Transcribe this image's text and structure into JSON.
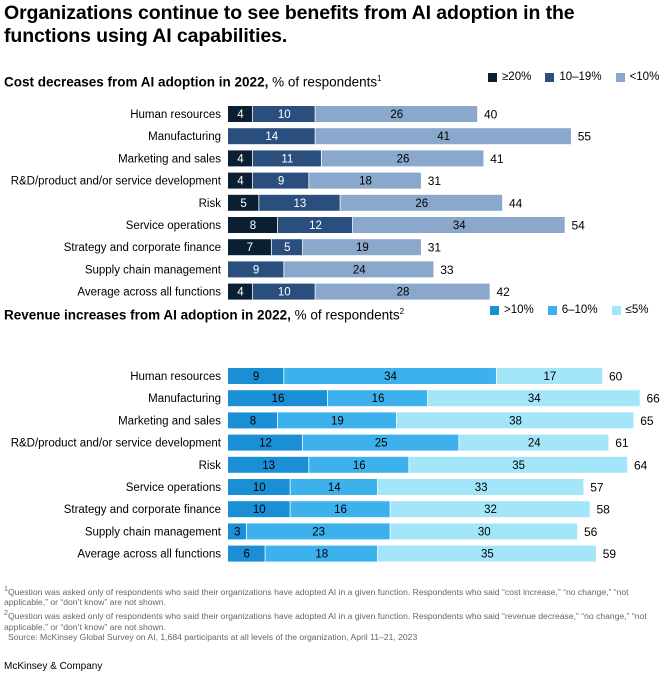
{
  "title": "Organizations continue to see benefits from AI adoption in the functions using AI capabilities.",
  "chart_data": [
    {
      "type": "bar",
      "stacked": true,
      "orientation": "horizontal",
      "title_bold": "Cost decreases from AI adoption in 2022,",
      "title_rest": " % of respondents",
      "title_sup": "1",
      "categories": [
        "Human resources",
        "Manufacturing",
        "Marketing and sales",
        "R&D/product and/or service development",
        "Risk",
        "Service operations",
        "Strategy and corporate finance",
        "Supply chain management",
        "Average across all functions"
      ],
      "series": [
        {
          "name": "≥20%",
          "color": "#0b1f33",
          "label_color": "#ffffff",
          "values": [
            4,
            0,
            4,
            4,
            5,
            8,
            7,
            0,
            4
          ]
        },
        {
          "name": "10–19%",
          "color": "#2a4f7f",
          "label_color": "#ffffff",
          "values": [
            10,
            14,
            11,
            9,
            13,
            12,
            5,
            9,
            10
          ]
        },
        {
          "name": "<10%",
          "color": "#8aa7cc",
          "label_color": "#000000",
          "values": [
            26,
            41,
            26,
            18,
            26,
            34,
            19,
            24,
            28
          ]
        }
      ],
      "totals": [
        40,
        55,
        41,
        31,
        44,
        54,
        31,
        33,
        42
      ]
    },
    {
      "type": "bar",
      "stacked": true,
      "orientation": "horizontal",
      "title_bold": "Revenue increases from AI adoption in 2022,",
      "title_rest": " % of respondents",
      "title_sup": "2",
      "categories": [
        "Human resources",
        "Manufacturing",
        "Marketing and sales",
        "R&D/product and/or service development",
        "Risk",
        "Service operations",
        "Strategy and corporate finance",
        "Supply chain management",
        "Average across all functions"
      ],
      "series": [
        {
          "name": ">10%",
          "color": "#1a8fd6",
          "label_color": "#000000",
          "values": [
            9,
            16,
            8,
            12,
            13,
            10,
            10,
            3,
            6
          ]
        },
        {
          "name": "6–10%",
          "color": "#3db1ec",
          "label_color": "#000000",
          "values": [
            34,
            16,
            19,
            25,
            16,
            14,
            16,
            23,
            18
          ]
        },
        {
          "name": "≤5%",
          "color": "#a3e6fa",
          "label_color": "#000000",
          "values": [
            17,
            34,
            38,
            24,
            35,
            33,
            32,
            30,
            35
          ]
        }
      ],
      "totals": [
        60,
        66,
        65,
        61,
        64,
        57,
        58,
        56,
        59
      ]
    }
  ],
  "footnotes": [
    "Question was asked only of respondents who said their organizations have adopted AI in a given function. Respondents who said “cost increase,” “no change,” “not applicable,” or “don’t know” are not shown.",
    "Question was asked only of respondents who said their organizations have adopted AI in a given function. Respondents who said “revenue decrease,” “no change,” “not applicable,” or “don’t know” are not shown."
  ],
  "footnote_marks": [
    "1",
    "2"
  ],
  "source": "Source: McKinsey Global Survey on AI, 1,684 participants at all levels of the organization, April 11–21, 2023",
  "brand": "McKinsey & Company"
}
